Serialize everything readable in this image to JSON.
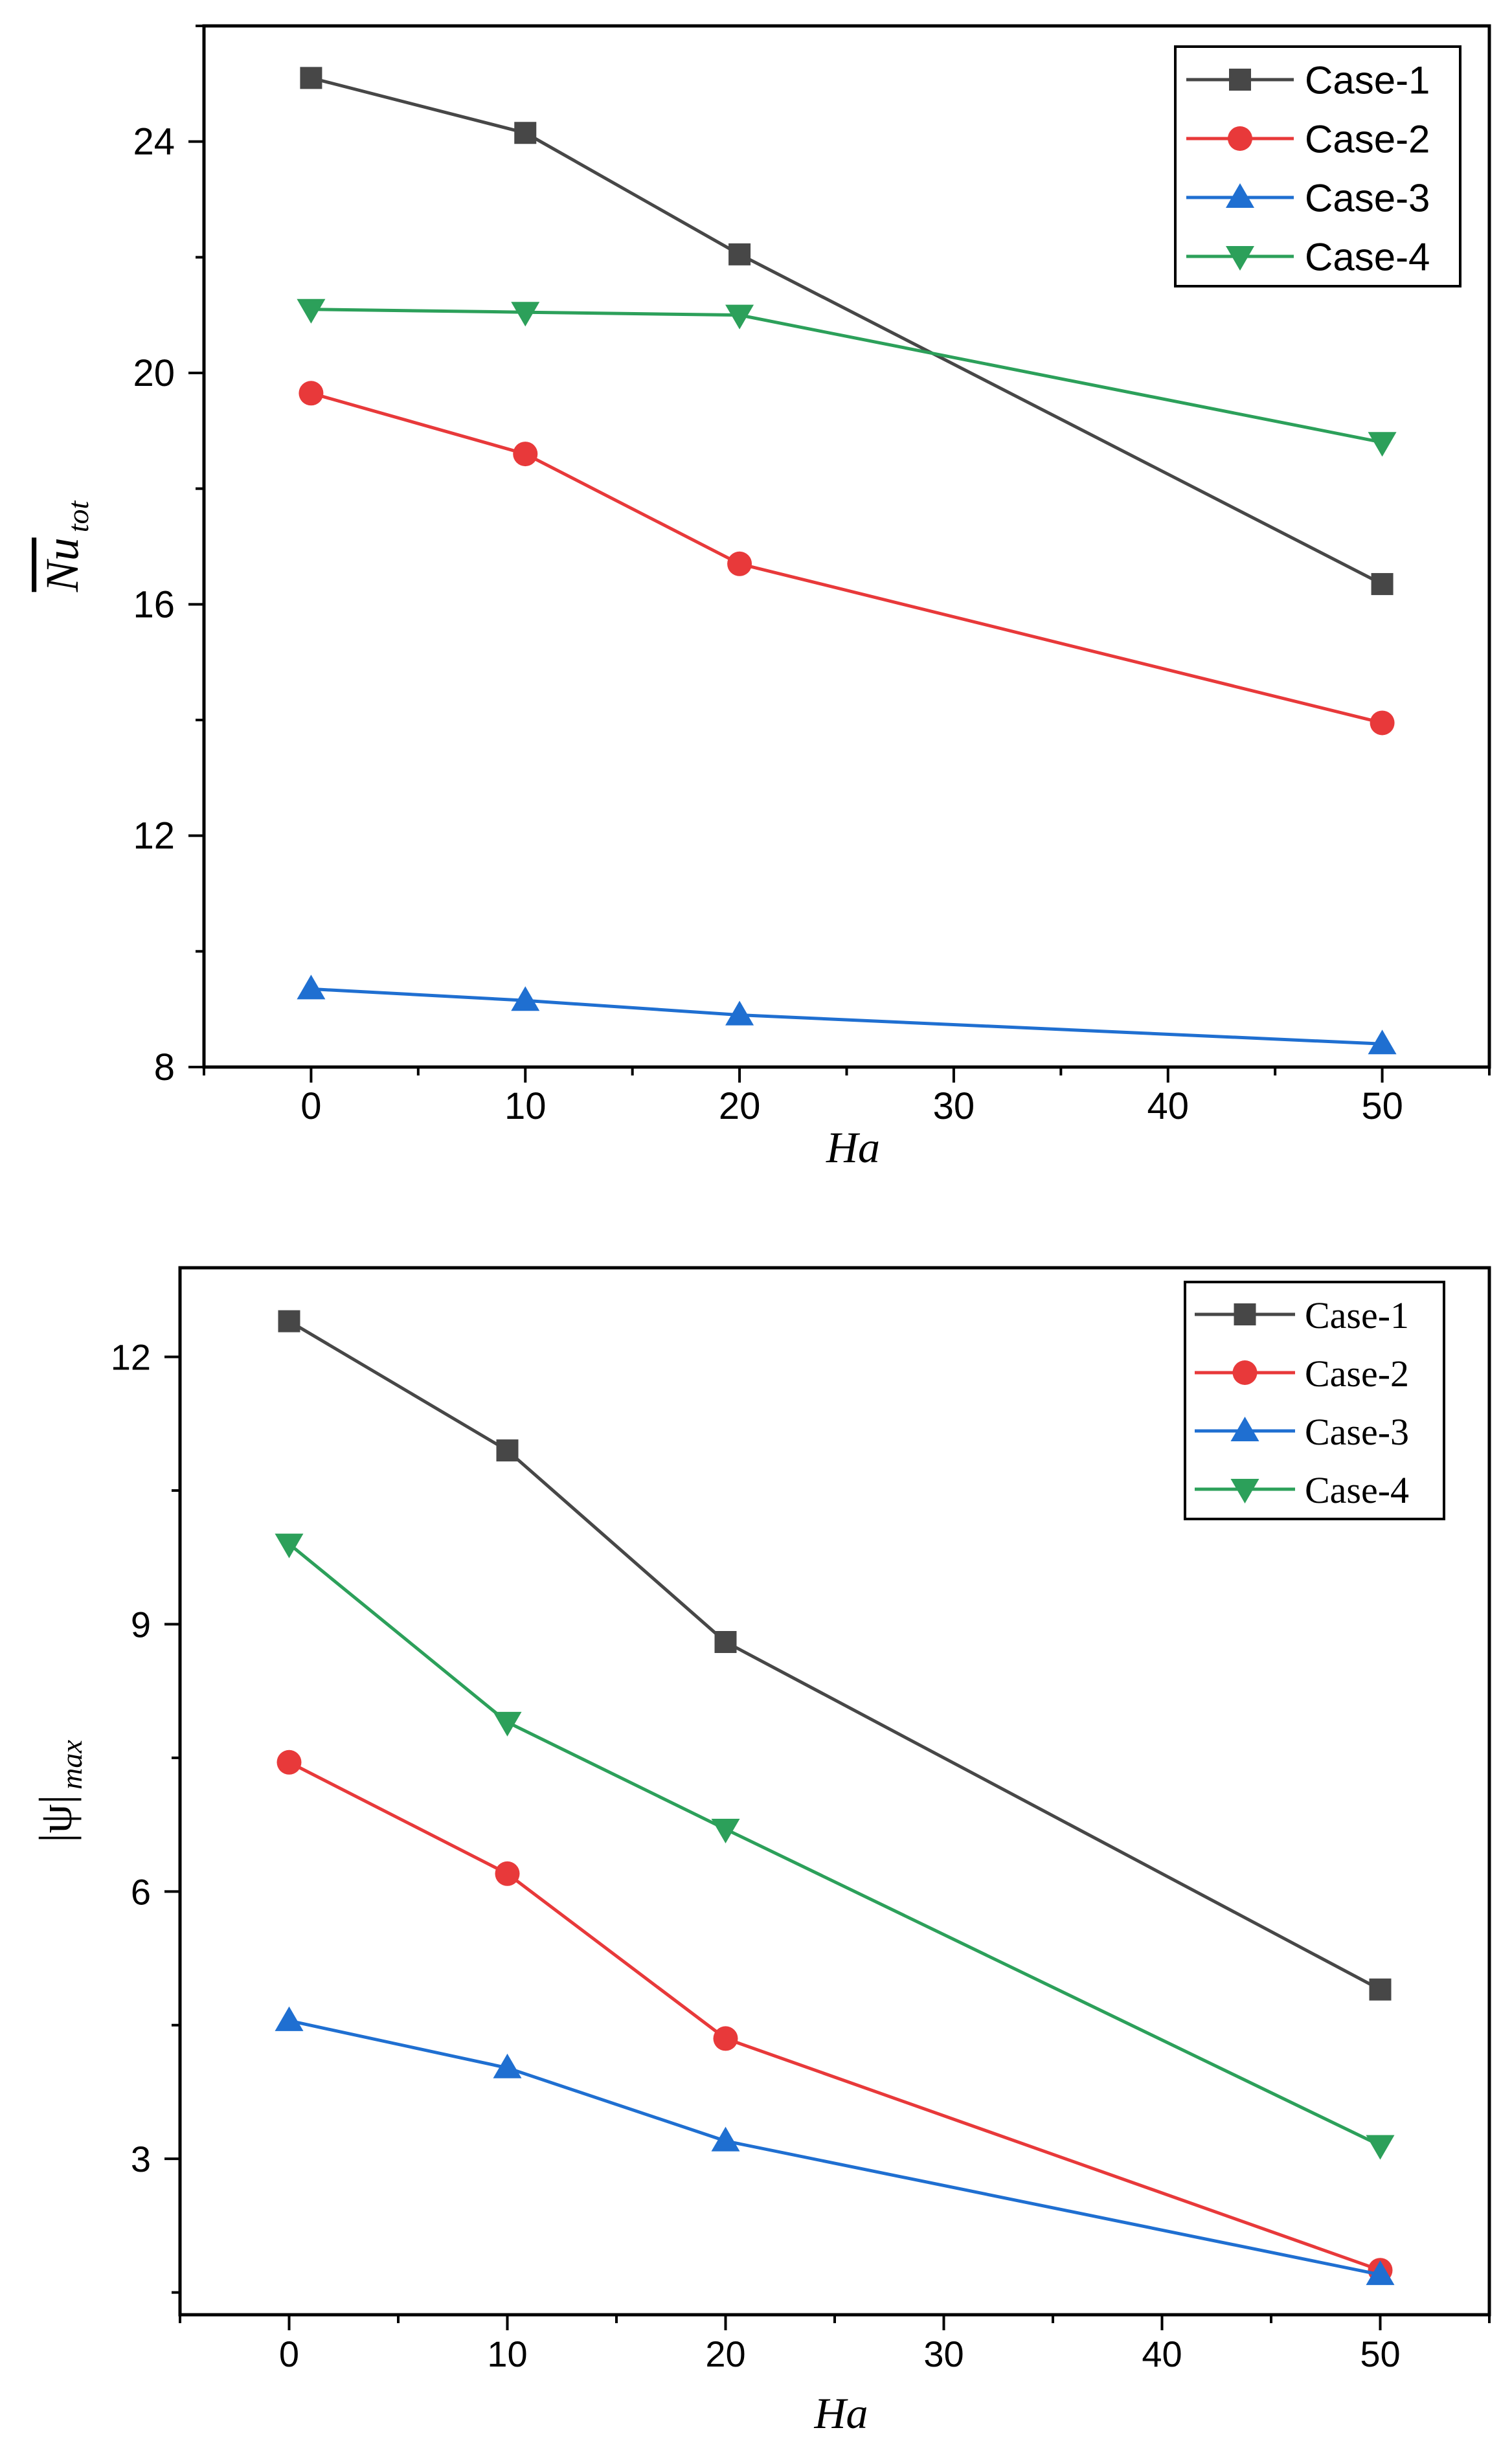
{
  "chart_data": [
    {
      "type": "line",
      "panel": "top",
      "title": "",
      "xlabel": "Ha",
      "ylabel_main": "Nu",
      "ylabel_sub": "tot",
      "x": [
        0,
        10,
        20,
        50
      ],
      "xlim": [
        -5,
        55
      ],
      "ylim": [
        8,
        26
      ],
      "xticks": [
        0,
        10,
        20,
        30,
        40,
        50
      ],
      "yticks": [
        8,
        12,
        16,
        20,
        24
      ],
      "grid": false,
      "legend_position": "top-right",
      "series": [
        {
          "name": "Case-1",
          "values": [
            25.1,
            24.15,
            22.05,
            16.35
          ],
          "color": "#474747",
          "marker": "square"
        },
        {
          "name": "Case-2",
          "values": [
            19.65,
            18.6,
            16.7,
            13.95
          ],
          "color": "#e8393a",
          "marker": "circle"
        },
        {
          "name": "Case-3",
          "values": [
            9.35,
            9.15,
            8.9,
            8.4
          ],
          "color": "#1f6fd1",
          "marker": "triangle-up"
        },
        {
          "name": "Case-4",
          "values": [
            21.1,
            21.05,
            21.0,
            18.8
          ],
          "color": "#2ca05a",
          "marker": "triangle-down"
        }
      ]
    },
    {
      "type": "line",
      "panel": "bottom",
      "title": "",
      "xlabel": "Ha",
      "ylabel_main": "|ψ|",
      "ylabel_sub": "max",
      "x": [
        0,
        10,
        20,
        50
      ],
      "xlim": [
        -5,
        55
      ],
      "ylim": [
        1.25,
        13.0
      ],
      "xticks": [
        0,
        10,
        20,
        30,
        40,
        50
      ],
      "yticks": [
        3,
        6,
        9,
        12
      ],
      "grid": false,
      "legend_position": "top-right",
      "series": [
        {
          "name": "Case-1",
          "values": [
            12.4,
            10.95,
            8.8,
            4.9
          ],
          "color": "#474747",
          "marker": "square"
        },
        {
          "name": "Case-2",
          "values": [
            7.45,
            6.2,
            4.35,
            1.75
          ],
          "color": "#e8393a",
          "marker": "circle"
        },
        {
          "name": "Case-3",
          "values": [
            4.55,
            4.02,
            3.2,
            1.7
          ],
          "color": "#1f6fd1",
          "marker": "triangle-up"
        },
        {
          "name": "Case-4",
          "values": [
            9.9,
            7.9,
            6.7,
            3.15
          ],
          "color": "#2ca05a",
          "marker": "triangle-down"
        }
      ]
    }
  ]
}
